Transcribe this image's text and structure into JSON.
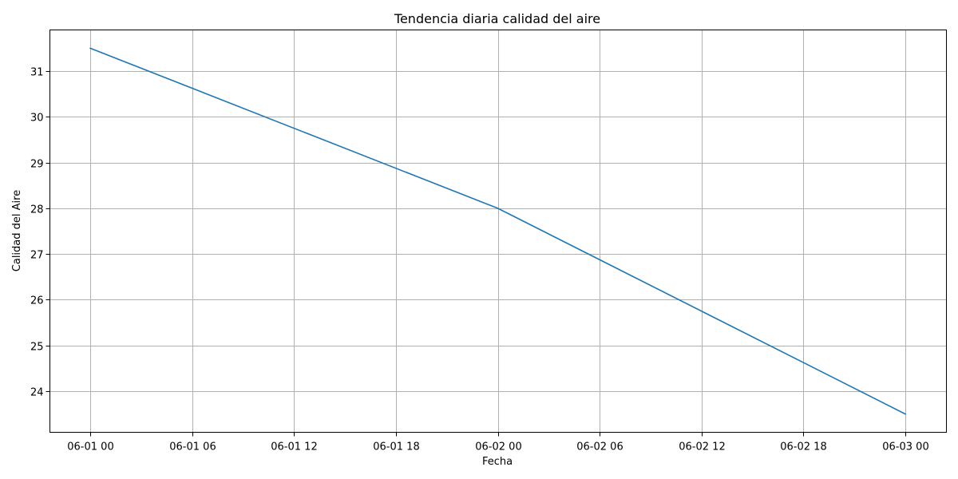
{
  "chart_data": {
    "type": "line",
    "title": "Tendencia diaria calidad del aire",
    "xlabel": "Fecha",
    "ylabel": "Calidad del Aire",
    "x_ticks": [
      "06-01 00",
      "06-01 06",
      "06-01 12",
      "06-01 18",
      "06-02 00",
      "06-02 06",
      "06-02 12",
      "06-02 18",
      "06-03 00"
    ],
    "y_ticks": [
      24,
      25,
      26,
      27,
      28,
      29,
      30,
      31
    ],
    "xlim": [
      "06-01 00",
      "06-03 00"
    ],
    "ylim": [
      23.1,
      31.9
    ],
    "grid": true,
    "series": [
      {
        "color": "#1f77b4",
        "x": [
          "06-01 00",
          "06-02 00",
          "06-03 00"
        ],
        "values": [
          31.5,
          28.0,
          23.5
        ]
      }
    ]
  }
}
